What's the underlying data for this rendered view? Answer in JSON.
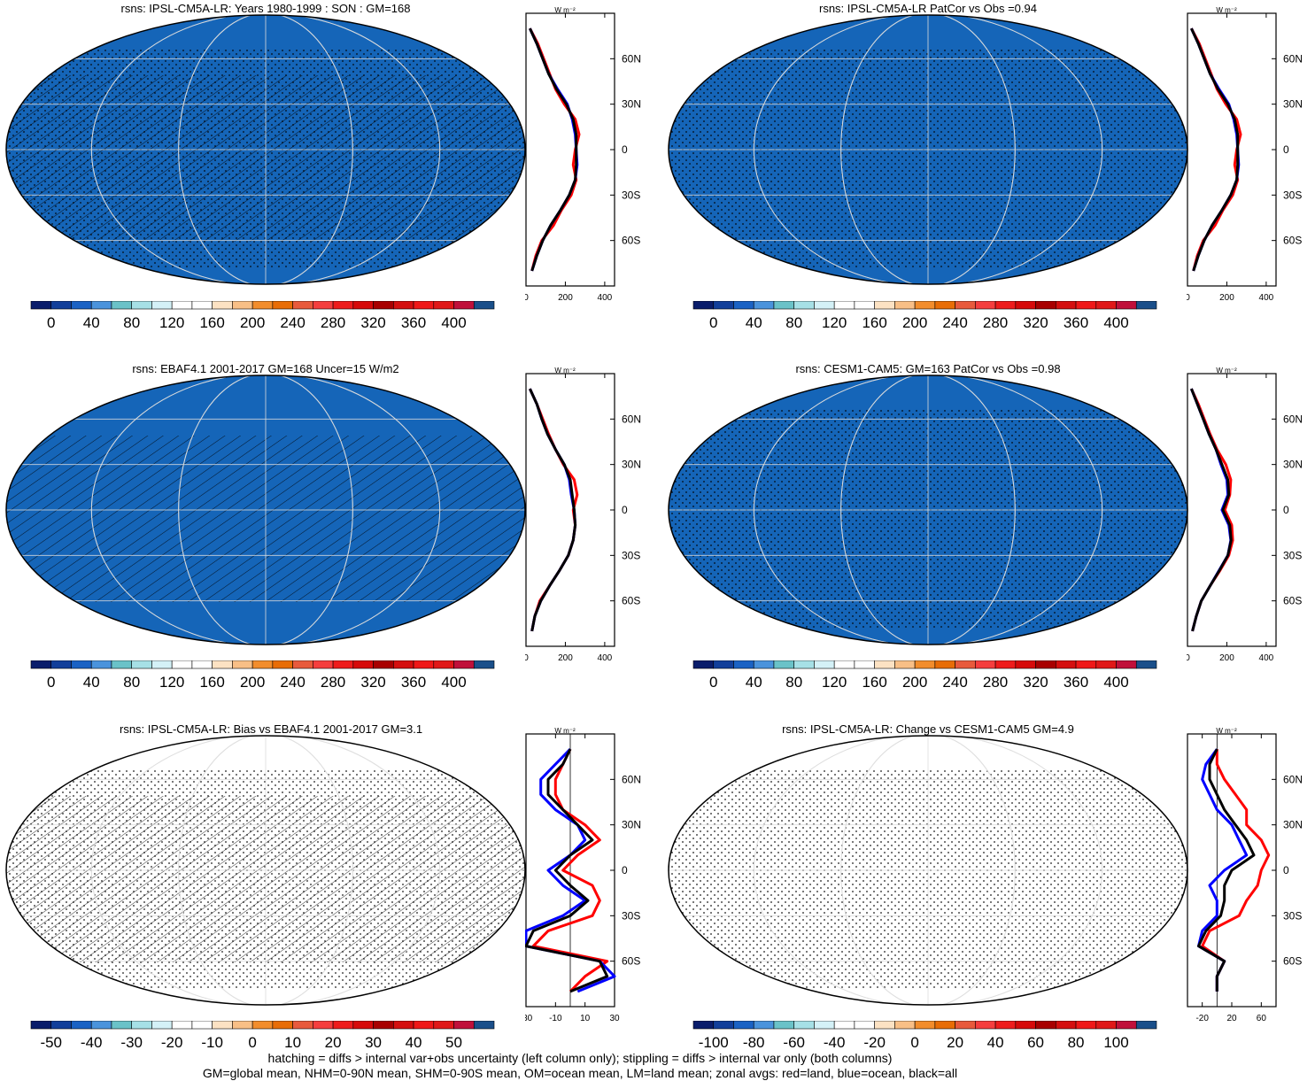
{
  "footer": {
    "line1": "hatching = diffs > internal var+obs uncertainty (left column only); stippling = diffs > internal var only (both columns)",
    "line2": "GM=global mean, NHM=0-90N mean, SHM=0-90S mean, OM=ocean mean, LM=land mean; zonal avgs: red=land, blue=ocean, black=all"
  },
  "lat_labels": [
    "60N",
    "30N",
    "0",
    "30S",
    "60S"
  ],
  "unit_label": "W m⁻²",
  "colors": {
    "land": "#ff0000",
    "ocean": "#0000ff",
    "all": "#000000"
  },
  "palette_abs": [
    "#0a1d6b",
    "#123f9a",
    "#1a62c4",
    "#4a93dc",
    "#6ac2c8",
    "#a6e0e6",
    "#d4f1f7",
    "#ffffff",
    "#ffffff",
    "#fce2c3",
    "#f8bf86",
    "#f28d2c",
    "#e86d06",
    "#e85a3c",
    "#f53e3e",
    "#ee1c1c",
    "#d60a0a",
    "#a80000",
    "#d40f0f",
    "#ef1818",
    "#e01818",
    "#c0103a",
    "#1a4f8a"
  ],
  "palette_bias": [
    "#0a1d6b",
    "#123f9a",
    "#1a62c4",
    "#4a93dc",
    "#6ac2c8",
    "#a6e0e6",
    "#d4f1f7",
    "#ffffff",
    "#ffffff",
    "#fce2c3",
    "#f8bf86",
    "#f28d2c",
    "#e86d06",
    "#e85a3c",
    "#f53e3e",
    "#ee1c1c",
    "#d60a0a",
    "#a80000",
    "#d40f0f",
    "#ef1818",
    "#e01818",
    "#c0103a",
    "#1a4f8a"
  ],
  "chart_data": [
    {
      "type": "heatmap",
      "title": "rsns: IPSL-CM5A-LR: Years 1980-1999 : SON : GM=168",
      "colorbar_ticks": [
        "0",
        "40",
        "80",
        "120",
        "160",
        "200",
        "240",
        "280",
        "320",
        "360",
        "400"
      ],
      "palette": "abs",
      "hatching": true,
      "stippling": true,
      "zonal": {
        "xlim": [
          0,
          450
        ],
        "xticks": [
          "0",
          "200",
          "400"
        ],
        "lat": [
          80,
          70,
          60,
          50,
          40,
          30,
          20,
          10,
          0,
          -10,
          -20,
          -30,
          -40,
          -50,
          -60,
          -70,
          -80
        ],
        "land": [
          20,
          60,
          90,
          120,
          150,
          195,
          250,
          270,
          250,
          240,
          255,
          230,
          180,
          140,
          80,
          50,
          30
        ],
        "ocean": [
          20,
          55,
          85,
          115,
          160,
          210,
          235,
          250,
          255,
          260,
          250,
          220,
          175,
          125,
          85,
          55,
          30
        ],
        "all": [
          20,
          55,
          85,
          115,
          155,
          205,
          240,
          255,
          255,
          255,
          250,
          220,
          175,
          125,
          85,
          55,
          30
        ]
      }
    },
    {
      "type": "heatmap",
      "title": "rsns: IPSL-CM5A-LR PatCor vs Obs =0.94",
      "colorbar_ticks": [
        "0",
        "40",
        "80",
        "120",
        "160",
        "200",
        "240",
        "280",
        "320",
        "360",
        "400"
      ],
      "palette": "abs",
      "hatching": false,
      "stippling": true,
      "zonal": {
        "xlim": [
          0,
          450
        ],
        "xticks": [
          "0",
          "200",
          "400"
        ],
        "lat": [
          80,
          70,
          60,
          50,
          40,
          30,
          20,
          10,
          0,
          -10,
          -20,
          -30,
          -40,
          -50,
          -60,
          -70,
          -80
        ],
        "land": [
          20,
          60,
          90,
          120,
          150,
          195,
          250,
          270,
          250,
          240,
          255,
          230,
          180,
          140,
          80,
          50,
          30
        ],
        "ocean": [
          20,
          55,
          85,
          115,
          160,
          210,
          235,
          250,
          255,
          260,
          250,
          220,
          175,
          125,
          85,
          55,
          30
        ],
        "all": [
          20,
          55,
          85,
          115,
          155,
          205,
          240,
          255,
          255,
          255,
          250,
          220,
          175,
          125,
          85,
          55,
          30
        ]
      }
    },
    {
      "type": "heatmap",
      "title": "rsns: EBAF4.1 2001-2017 GM=168 Uncer=15 W/m2",
      "colorbar_ticks": [
        "0",
        "40",
        "80",
        "120",
        "160",
        "200",
        "240",
        "280",
        "320",
        "360",
        "400"
      ],
      "palette": "abs",
      "hatching": true,
      "stippling": false,
      "zonal": {
        "xlim": [
          0,
          450
        ],
        "xticks": [
          "0",
          "200",
          "400"
        ],
        "lat": [
          80,
          70,
          60,
          50,
          40,
          30,
          20,
          10,
          0,
          -10,
          -20,
          -30,
          -40,
          -50,
          -60,
          -70,
          -80
        ],
        "land": [
          20,
          55,
          85,
          115,
          150,
          190,
          245,
          260,
          240,
          250,
          240,
          215,
          170,
          120,
          70,
          45,
          30
        ],
        "ocean": [
          20,
          55,
          80,
          110,
          150,
          195,
          220,
          230,
          245,
          250,
          240,
          215,
          170,
          120,
          75,
          45,
          30
        ],
        "all": [
          20,
          55,
          80,
          110,
          150,
          195,
          225,
          235,
          245,
          250,
          240,
          215,
          170,
          120,
          75,
          45,
          30
        ]
      }
    },
    {
      "type": "heatmap",
      "title": "rsns: CESM1-CAM5: GM=163 PatCor vs Obs =0.98",
      "colorbar_ticks": [
        "0",
        "40",
        "80",
        "120",
        "160",
        "200",
        "240",
        "280",
        "320",
        "360",
        "400"
      ],
      "palette": "abs",
      "hatching": false,
      "stippling": true,
      "zonal": {
        "xlim": [
          0,
          450
        ],
        "xticks": [
          "0",
          "200",
          "400"
        ],
        "lat": [
          80,
          70,
          60,
          50,
          40,
          30,
          20,
          10,
          0,
          -10,
          -20,
          -30,
          -40,
          -50,
          -60,
          -70,
          -80
        ],
        "land": [
          20,
          55,
          85,
          115,
          150,
          195,
          220,
          215,
          190,
          225,
          230,
          210,
          165,
          115,
          70,
          45,
          25
        ],
        "ocean": [
          20,
          50,
          80,
          110,
          145,
          170,
          200,
          205,
          175,
          210,
          220,
          205,
          160,
          115,
          70,
          45,
          25
        ],
        "all": [
          20,
          50,
          80,
          110,
          145,
          175,
          205,
          210,
          180,
          215,
          222,
          205,
          162,
          115,
          70,
          45,
          25
        ]
      }
    },
    {
      "type": "heatmap",
      "title": "rsns: IPSL-CM5A-LR: Bias vs EBAF4.1 2001-2017  GM=3.1",
      "colorbar_ticks": [
        "-50",
        "-40",
        "-30",
        "-20",
        "-10",
        "0",
        "10",
        "20",
        "30",
        "40",
        "50"
      ],
      "palette": "bias",
      "hatching": true,
      "stippling": true,
      "zonal": {
        "xlim": [
          -30,
          30
        ],
        "xticks": [
          "-30",
          "-10",
          "10",
          "30"
        ],
        "lat": [
          80,
          70,
          60,
          50,
          40,
          30,
          20,
          10,
          0,
          -10,
          -20,
          -30,
          -40,
          -50,
          -60,
          -70,
          -80
        ],
        "land": [
          0,
          -5,
          -10,
          -10,
          -5,
          10,
          20,
          5,
          -5,
          15,
          20,
          15,
          -15,
          -25,
          25,
          10,
          0
        ],
        "ocean": [
          0,
          -10,
          -20,
          -20,
          -10,
          5,
          10,
          0,
          -15,
          -5,
          10,
          -5,
          -30,
          -30,
          20,
          30,
          5
        ],
        "all": [
          0,
          -5,
          -15,
          -15,
          -5,
          5,
          15,
          0,
          -10,
          0,
          12,
          0,
          -25,
          -30,
          20,
          25,
          0
        ]
      }
    },
    {
      "type": "heatmap",
      "title": "rsns: IPSL-CM5A-LR: Change vs CESM1-CAM5 GM=4.9",
      "colorbar_ticks": [
        "-100",
        "-80",
        "-60",
        "-40",
        "-20",
        "0",
        "20",
        "40",
        "60",
        "80",
        "100"
      ],
      "palette": "bias",
      "hatching": false,
      "stippling": true,
      "zonal": {
        "xlim": [
          -40,
          80
        ],
        "xticks": [
          "-20",
          "20",
          "60"
        ],
        "lat": [
          80,
          70,
          60,
          50,
          40,
          30,
          20,
          10,
          0,
          -10,
          -20,
          -30,
          -40,
          -50,
          -60,
          -70,
          -80
        ],
        "land": [
          0,
          0,
          10,
          25,
          40,
          40,
          60,
          70,
          60,
          55,
          40,
          30,
          -10,
          -20,
          10,
          0,
          0
        ],
        "ocean": [
          0,
          -15,
          -20,
          -10,
          0,
          20,
          30,
          40,
          10,
          -10,
          0,
          0,
          -20,
          -25,
          10,
          0,
          0
        ],
        "all": [
          0,
          -10,
          -10,
          0,
          10,
          25,
          40,
          50,
          20,
          10,
          10,
          5,
          -15,
          -25,
          10,
          0,
          0
        ]
      }
    }
  ]
}
